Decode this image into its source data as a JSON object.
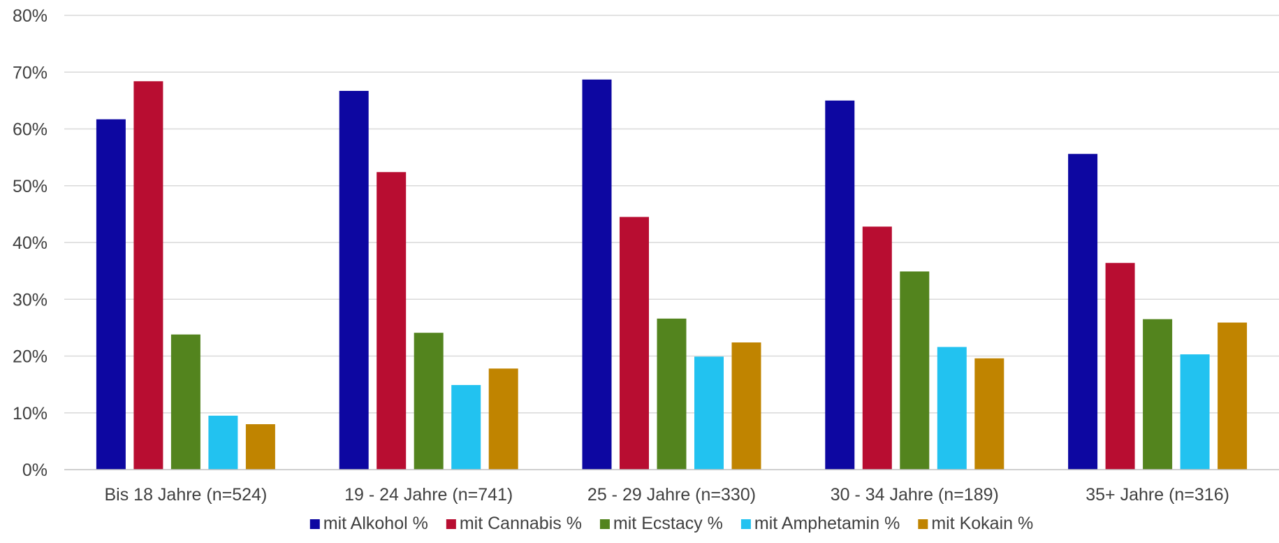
{
  "chart_data": {
    "type": "bar",
    "title": "",
    "xlabel": "",
    "ylabel": "",
    "ylim": [
      0,
      0.8
    ],
    "y_ticks": [
      0,
      0.1,
      0.2,
      0.3,
      0.4,
      0.5,
      0.6,
      0.7,
      0.8
    ],
    "y_tick_labels": [
      "0%",
      "10%",
      "20%",
      "30%",
      "40%",
      "50%",
      "60%",
      "70%",
      "80%"
    ],
    "grid": true,
    "legend_position": "bottom",
    "categories": [
      "Bis 18 Jahre (n=524)",
      "19 - 24 Jahre (n=741)",
      "25 - 29 Jahre (n=330)",
      "30 - 34 Jahre (n=189)",
      "35+ Jahre (n=316)"
    ],
    "series": [
      {
        "name": "mit Alkohol %",
        "color": "#0d07a1",
        "values": [
          0.617,
          0.667,
          0.687,
          0.65,
          0.556
        ]
      },
      {
        "name": "mit Cannabis %",
        "color": "#b80d31",
        "values": [
          0.684,
          0.524,
          0.445,
          0.428,
          0.364
        ]
      },
      {
        "name": "mit Ecstacy %",
        "color": "#53841e",
        "values": [
          0.238,
          0.241,
          0.266,
          0.349,
          0.265
        ]
      },
      {
        "name": "mit Amphetamin %",
        "color": "#22c2f0",
        "values": [
          0.095,
          0.149,
          0.199,
          0.216,
          0.203
        ]
      },
      {
        "name": "mit Kokain %",
        "color": "#c08400",
        "values": [
          0.08,
          0.178,
          0.224,
          0.196,
          0.259
        ]
      }
    ]
  }
}
